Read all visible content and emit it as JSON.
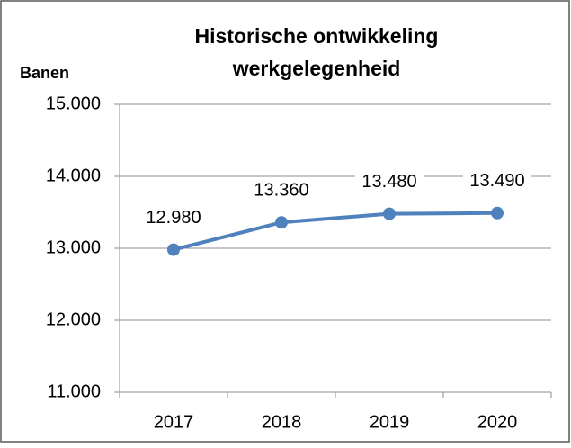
{
  "chart_data": {
    "type": "line",
    "title": [
      "Historische ontwikkeling",
      "werkgelegenheid"
    ],
    "y_label": "Banen",
    "categories": [
      "2017",
      "2018",
      "2019",
      "2020"
    ],
    "series": [
      {
        "name": "Banen",
        "color": "#4f81bd",
        "values": [
          12980,
          13360,
          13480,
          13490
        ],
        "value_labels": [
          "12.980",
          "13.360",
          "13.480",
          "13.490"
        ]
      }
    ],
    "ylim": [
      11000,
      15000
    ],
    "yticks": [
      {
        "value": 11000,
        "label": "11.000"
      },
      {
        "value": 12000,
        "label": "12.000"
      },
      {
        "value": 13000,
        "label": "13.000"
      },
      {
        "value": 14000,
        "label": "14.000"
      },
      {
        "value": 15000,
        "label": "15.000"
      }
    ],
    "grid": true,
    "legend": false
  }
}
